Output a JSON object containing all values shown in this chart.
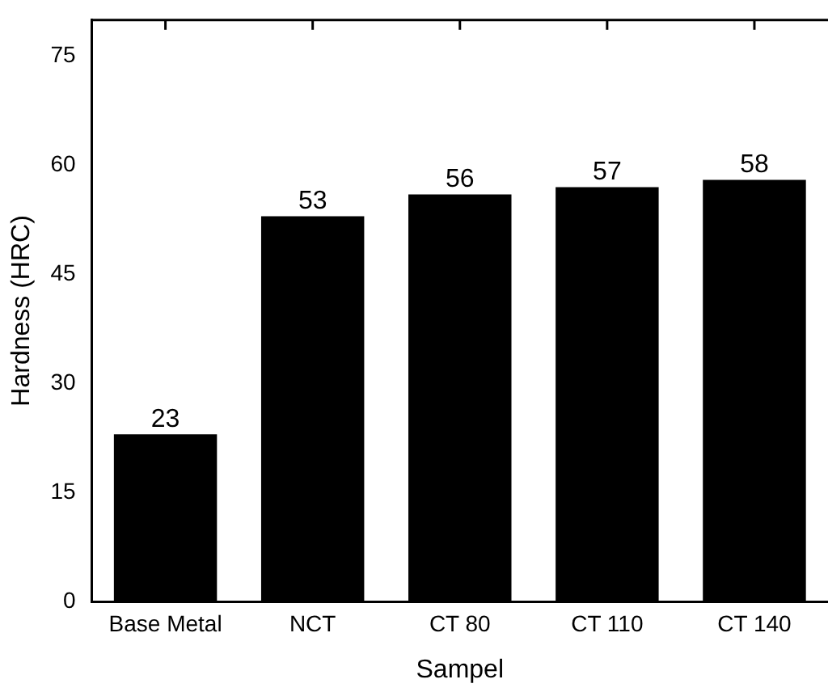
{
  "chart_data": {
    "type": "bar",
    "xlabel": "Sampel",
    "ylabel": "Hardness (HRC)",
    "categories": [
      "Base Metal",
      "NCT",
      "CT 80",
      "CT 110",
      "CT 140"
    ],
    "values": [
      23,
      53,
      56,
      57,
      58
    ],
    "color": "#000000",
    "ylim": [
      0,
      80
    ],
    "yticks": [
      0,
      15,
      30,
      45,
      60,
      75
    ],
    "grid": false,
    "legend": false,
    "data_labels": true
  }
}
